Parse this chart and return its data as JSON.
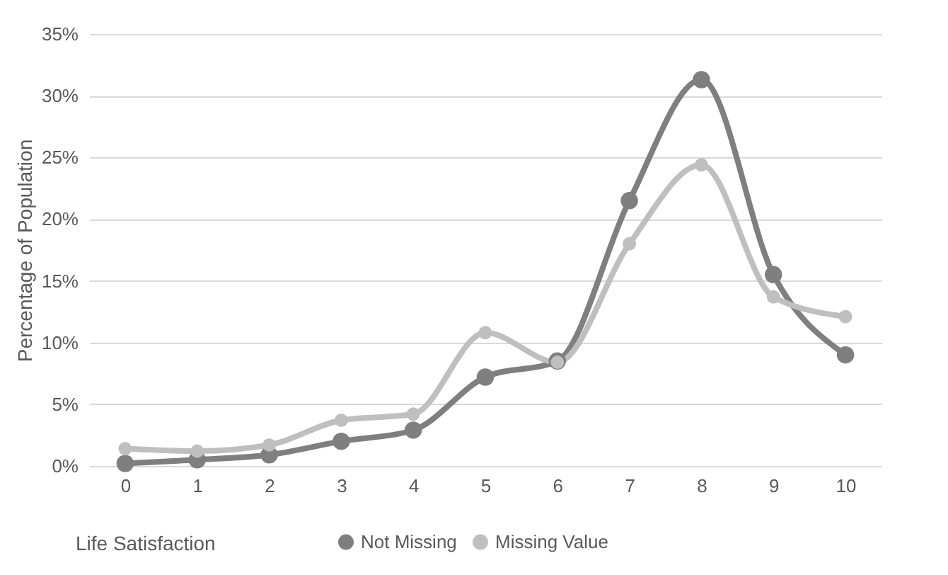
{
  "chart_data": {
    "type": "line",
    "xlabel": "Life Satisfaction",
    "ylabel": "Percentage of Population",
    "categories": [
      "0",
      "1",
      "2",
      "3",
      "4",
      "5",
      "6",
      "7",
      "8",
      "9",
      "10"
    ],
    "series": [
      {
        "name": "Not Missing",
        "color": "#7f7f7f",
        "values": [
          0.2,
          0.5,
          0.9,
          2.0,
          2.9,
          7.2,
          8.5,
          21.5,
          31.3,
          15.5,
          9.0
        ]
      },
      {
        "name": "Missing Value",
        "color": "#bfbfbf",
        "values": [
          1.4,
          1.2,
          1.7,
          3.7,
          4.2,
          10.8,
          8.4,
          18.0,
          24.4,
          13.7,
          12.1
        ]
      }
    ],
    "ylim": [
      0,
      35
    ],
    "yticks": [
      {
        "value": 0,
        "label": "0%"
      },
      {
        "value": 5,
        "label": "5%"
      },
      {
        "value": 10,
        "label": "10%"
      },
      {
        "value": 15,
        "label": "15%"
      },
      {
        "value": 20,
        "label": "20%"
      },
      {
        "value": 25,
        "label": "25%"
      },
      {
        "value": 30,
        "label": "30%"
      },
      {
        "value": 35,
        "label": "35%"
      }
    ],
    "grid": "y",
    "legend": "bottom",
    "marker": "circle",
    "line_style": "solid"
  }
}
